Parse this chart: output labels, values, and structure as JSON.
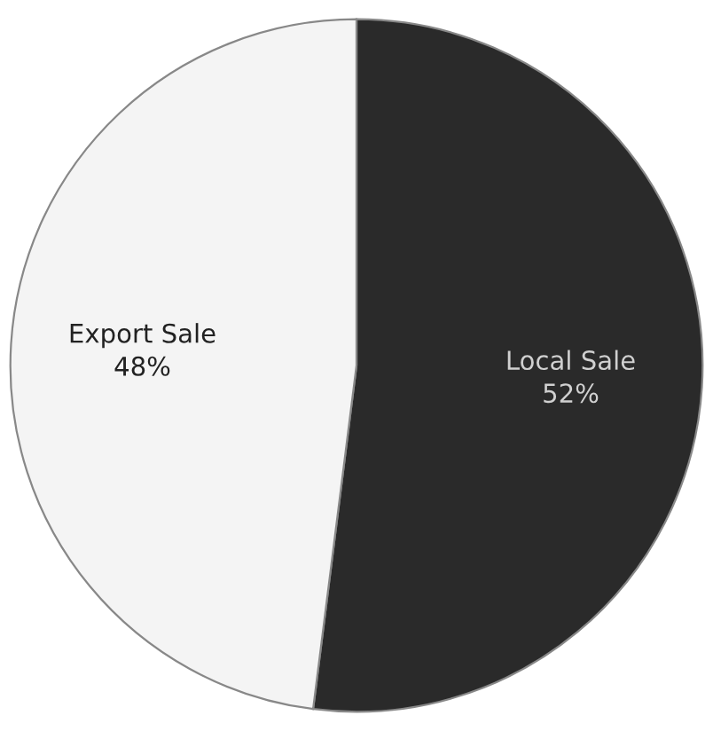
{
  "chart_data": {
    "type": "pie",
    "categories": [
      "Local Sale",
      "Export Sale"
    ],
    "values": [
      52,
      48
    ],
    "colors": [
      "#2a2a2a",
      "#f4f4f4"
    ],
    "value_labels": [
      "52%",
      "48%"
    ]
  }
}
